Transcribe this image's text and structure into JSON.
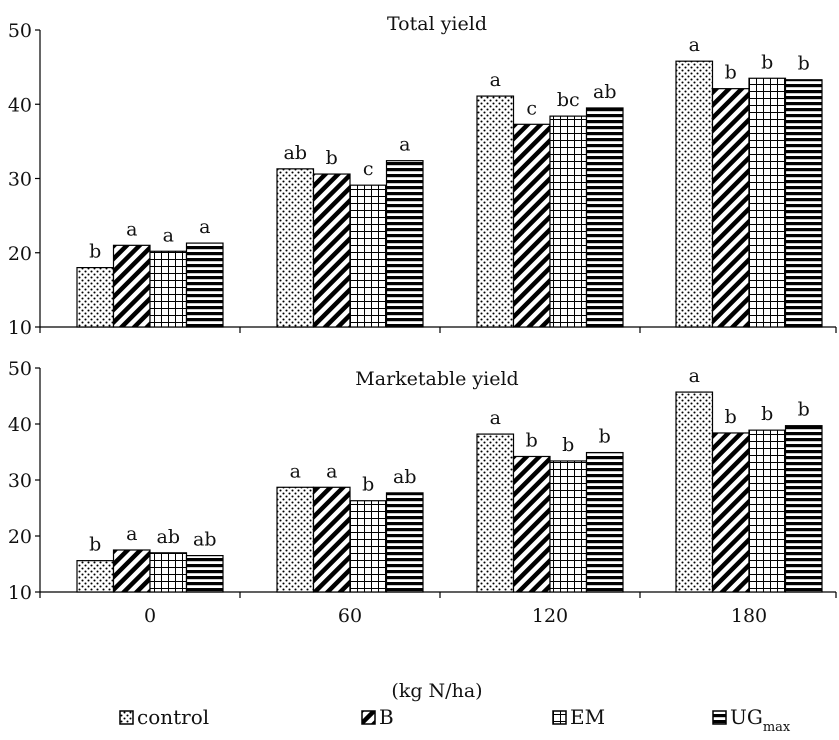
{
  "chart_data": {
    "type": "bar",
    "xlabel": "(kg N/ha)",
    "categories": [
      "0",
      "60",
      "120",
      "180"
    ],
    "legend": {
      "placement": "bottom",
      "entries": [
        {
          "text": "control",
          "sub": ""
        },
        {
          "text": "B",
          "sub": ""
        },
        {
          "text": "EM",
          "sub": ""
        },
        {
          "text": "UG",
          "sub": "max"
        }
      ]
    },
    "panels": [
      {
        "title": "Total yield",
        "ylim": [
          10,
          50
        ],
        "yticks": [
          "10",
          "20",
          "30",
          "40",
          "50"
        ],
        "series": [
          {
            "name": "control",
            "values": [
              18.0,
              31.3,
              41.1,
              45.8
            ],
            "letters": [
              "b",
              "ab",
              "a",
              "a"
            ]
          },
          {
            "name": "B",
            "values": [
              21.0,
              30.6,
              37.3,
              42.1
            ],
            "letters": [
              "a",
              "b",
              "c",
              "b"
            ]
          },
          {
            "name": "EM",
            "values": [
              20.2,
              29.1,
              38.4,
              43.5
            ],
            "letters": [
              "a",
              "c",
              "bc",
              "b"
            ]
          },
          {
            "name": "UGmax",
            "values": [
              21.3,
              32.4,
              39.5,
              43.3
            ],
            "letters": [
              "a",
              "a",
              "ab",
              "b"
            ]
          }
        ]
      },
      {
        "title": "Marketable yield",
        "ylim": [
          10,
          50
        ],
        "yticks": [
          "10",
          "20",
          "30",
          "40",
          "50"
        ],
        "series": [
          {
            "name": "control",
            "values": [
              15.6,
              28.7,
              38.2,
              45.7
            ],
            "letters": [
              "b",
              "a",
              "a",
              "a"
            ]
          },
          {
            "name": "B",
            "values": [
              17.5,
              28.7,
              34.2,
              38.4
            ],
            "letters": [
              "a",
              "a",
              "b",
              "b"
            ]
          },
          {
            "name": "EM",
            "values": [
              17.0,
              26.3,
              33.4,
              38.9
            ],
            "letters": [
              "ab",
              "b",
              "b",
              "b"
            ]
          },
          {
            "name": "UGmax",
            "values": [
              16.5,
              27.7,
              34.9,
              39.7
            ],
            "letters": [
              "ab",
              "ab",
              "b",
              "b"
            ]
          }
        ]
      }
    ]
  }
}
